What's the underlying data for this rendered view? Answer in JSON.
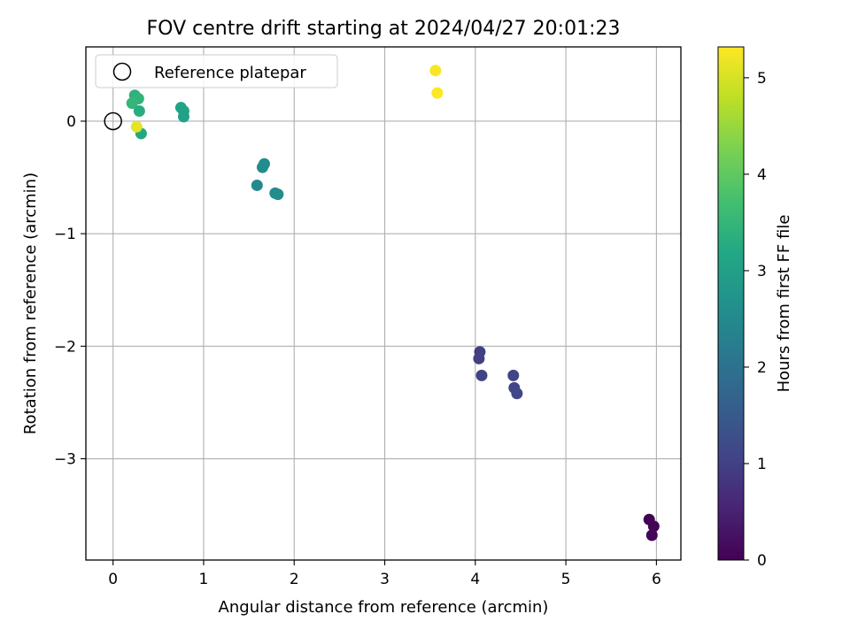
{
  "chart_data": {
    "type": "scatter",
    "title": "FOV centre drift starting at 2024/04/27 20:01:23",
    "xlabel": "Angular distance from reference (arcmin)",
    "ylabel": "Rotation from reference (arcmin)",
    "xlim": [
      -0.3,
      6.27
    ],
    "ylim": [
      -3.9,
      0.66
    ],
    "xticks": [
      0,
      1,
      2,
      3,
      4,
      5,
      6
    ],
    "yticks": [
      0,
      -1,
      -2,
      -3
    ],
    "ytick_labels": [
      "0",
      "−1",
      "−2",
      "−3"
    ],
    "grid": true,
    "legend": {
      "placement": "top-left",
      "entries": [
        "Reference platepar"
      ]
    },
    "reference_point": {
      "x": 0,
      "y": 0,
      "label": "Reference platepar"
    },
    "colorbar": {
      "label": "Hours from first FF file",
      "range": [
        0,
        5.32
      ],
      "ticks": [
        0,
        1,
        2,
        3,
        4,
        5
      ],
      "colormap": "viridis"
    },
    "points": [
      {
        "x": 5.92,
        "y": -3.54,
        "c": 0.0
      },
      {
        "x": 5.97,
        "y": -3.6,
        "c": 0.04
      },
      {
        "x": 5.95,
        "y": -3.68,
        "c": 0.08
      },
      {
        "x": 4.05,
        "y": -2.05,
        "c": 1.0
      },
      {
        "x": 4.04,
        "y": -2.11,
        "c": 1.02
      },
      {
        "x": 4.07,
        "y": -2.26,
        "c": 1.04
      },
      {
        "x": 4.42,
        "y": -2.26,
        "c": 1.06
      },
      {
        "x": 4.43,
        "y": -2.37,
        "c": 1.08
      },
      {
        "x": 4.46,
        "y": -2.42,
        "c": 1.1
      },
      {
        "x": 1.59,
        "y": -0.57,
        "c": 2.5
      },
      {
        "x": 1.65,
        "y": -0.41,
        "c": 2.55
      },
      {
        "x": 1.67,
        "y": -0.38,
        "c": 2.58
      },
      {
        "x": 1.79,
        "y": -0.64,
        "c": 2.53
      },
      {
        "x": 1.82,
        "y": -0.65,
        "c": 2.56
      },
      {
        "x": 0.75,
        "y": 0.12,
        "c": 3.05
      },
      {
        "x": 0.78,
        "y": 0.09,
        "c": 3.08
      },
      {
        "x": 0.78,
        "y": 0.04,
        "c": 3.02
      },
      {
        "x": 0.24,
        "y": 0.23,
        "c": 3.4
      },
      {
        "x": 0.28,
        "y": 0.2,
        "c": 3.45
      },
      {
        "x": 0.21,
        "y": 0.16,
        "c": 3.5
      },
      {
        "x": 0.29,
        "y": 0.09,
        "c": 3.3
      },
      {
        "x": 0.31,
        "y": -0.11,
        "c": 3.2
      },
      {
        "x": 0.26,
        "y": -0.05,
        "c": 5.1
      },
      {
        "x": 3.56,
        "y": 0.45,
        "c": 5.28
      },
      {
        "x": 3.58,
        "y": 0.25,
        "c": 5.3
      }
    ]
  }
}
